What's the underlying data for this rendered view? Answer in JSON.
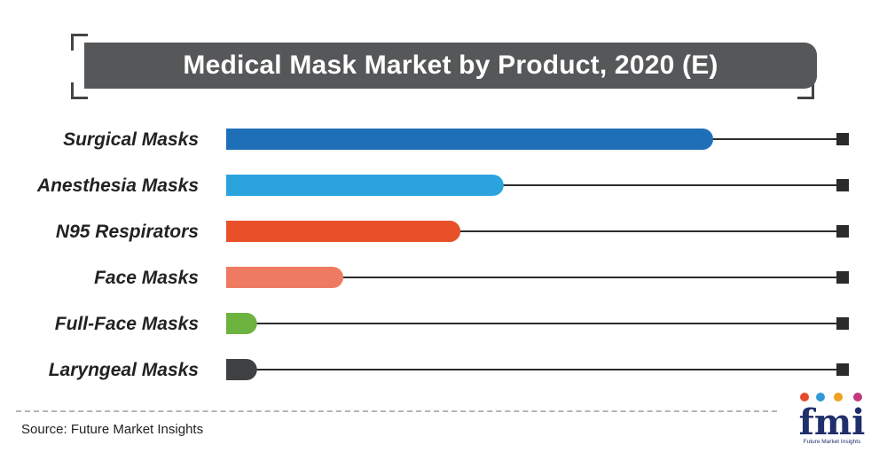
{
  "title": "Medical Mask Market by Product, 2020 (E)",
  "source": "Source: Future Market Insights",
  "logo": {
    "text": "fmi",
    "subtitle": "Future Market Insights",
    "dot_colors": [
      "#e84a2d",
      "#2f9ad6",
      "#f0a020",
      "#c23a7d"
    ]
  },
  "chart_data": {
    "type": "bar",
    "orientation": "horizontal",
    "categories": [
      "Surgical Masks",
      "Anesthesia Masks",
      "N95 Respirators",
      "Face Masks",
      "Full-Face Masks",
      "Laryngeal Masks"
    ],
    "values": [
      79,
      45,
      38,
      19,
      5,
      5
    ],
    "colors": [
      "#1f6fb8",
      "#2ba3dd",
      "#e8502a",
      "#ef7a62",
      "#6cb33f",
      "#3f4143"
    ],
    "xlim": [
      0,
      100
    ],
    "grid": false,
    "legend": "none"
  }
}
